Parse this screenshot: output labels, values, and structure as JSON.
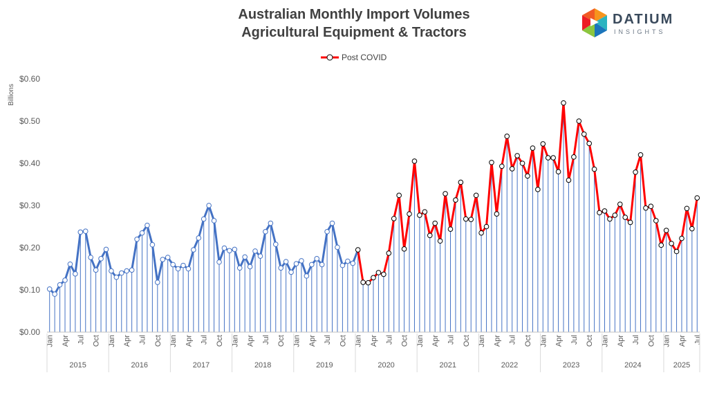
{
  "chart_data": {
    "type": "line",
    "title": [
      "Australian Monthly Import Volumes",
      "Agricultural Equipment & Tractors"
    ],
    "ylabel": "Billions",
    "ylim": [
      0,
      0.6
    ],
    "yticks": [
      0,
      0.1,
      0.2,
      0.3,
      0.4,
      0.5,
      0.6
    ],
    "ytick_labels": [
      "$0.00",
      "$0.10",
      "$0.20",
      "$0.30",
      "$0.40",
      "$0.50",
      "$0.60"
    ],
    "grid": false,
    "legend_position": "top-center",
    "month_tick_labels": [
      "Jan",
      "Apr",
      "Jul",
      "Oct"
    ],
    "years": [
      "2015",
      "2016",
      "2017",
      "2018",
      "2019",
      "2020",
      "2021",
      "2022",
      "2023",
      "2024",
      "2025"
    ],
    "start": "2015-01",
    "end": "2025-07",
    "covid_start": "2020-01",
    "colors": {
      "pre": "#4472c4",
      "post": "#ff0000",
      "drop": "#4472c4",
      "marker_edge_post": "#000000"
    },
    "series": [
      {
        "name": "Post COVID",
        "values": [
          0.102,
          0.09,
          0.112,
          0.123,
          0.161,
          0.138,
          0.237,
          0.239,
          0.177,
          0.147,
          0.174,
          0.196,
          0.145,
          0.13,
          0.14,
          0.145,
          0.147,
          0.22,
          0.235,
          0.253,
          0.207,
          0.118,
          0.172,
          0.177,
          0.16,
          0.15,
          0.158,
          0.15,
          0.195,
          0.223,
          0.268,
          0.3,
          0.264,
          0.166,
          0.199,
          0.193,
          0.196,
          0.152,
          0.178,
          0.155,
          0.192,
          0.18,
          0.238,
          0.258,
          0.208,
          0.152,
          0.167,
          0.142,
          0.162,
          0.169,
          0.133,
          0.16,
          0.174,
          0.16,
          0.238,
          0.258,
          0.201,
          0.158,
          0.168,
          0.163,
          0.195,
          0.118,
          0.117,
          0.129,
          0.141,
          0.137,
          0.187,
          0.269,
          0.324,
          0.197,
          0.28,
          0.405,
          0.277,
          0.285,
          0.229,
          0.258,
          0.216,
          0.328,
          0.244,
          0.313,
          0.355,
          0.268,
          0.267,
          0.324,
          0.235,
          0.25,
          0.402,
          0.28,
          0.393,
          0.464,
          0.387,
          0.418,
          0.4,
          0.37,
          0.436,
          0.338,
          0.446,
          0.413,
          0.413,
          0.38,
          0.543,
          0.36,
          0.415,
          0.5,
          0.469,
          0.447,
          0.386,
          0.283,
          0.287,
          0.268,
          0.277,
          0.303,
          0.272,
          0.26,
          0.379,
          0.42,
          0.294,
          0.298,
          0.264,
          0.206,
          0.241,
          0.21,
          0.191,
          0.222,
          0.293,
          0.245,
          0.318
        ]
      }
    ]
  },
  "logo": {
    "word": "DATIUM",
    "sub": "INSIGHTS"
  }
}
